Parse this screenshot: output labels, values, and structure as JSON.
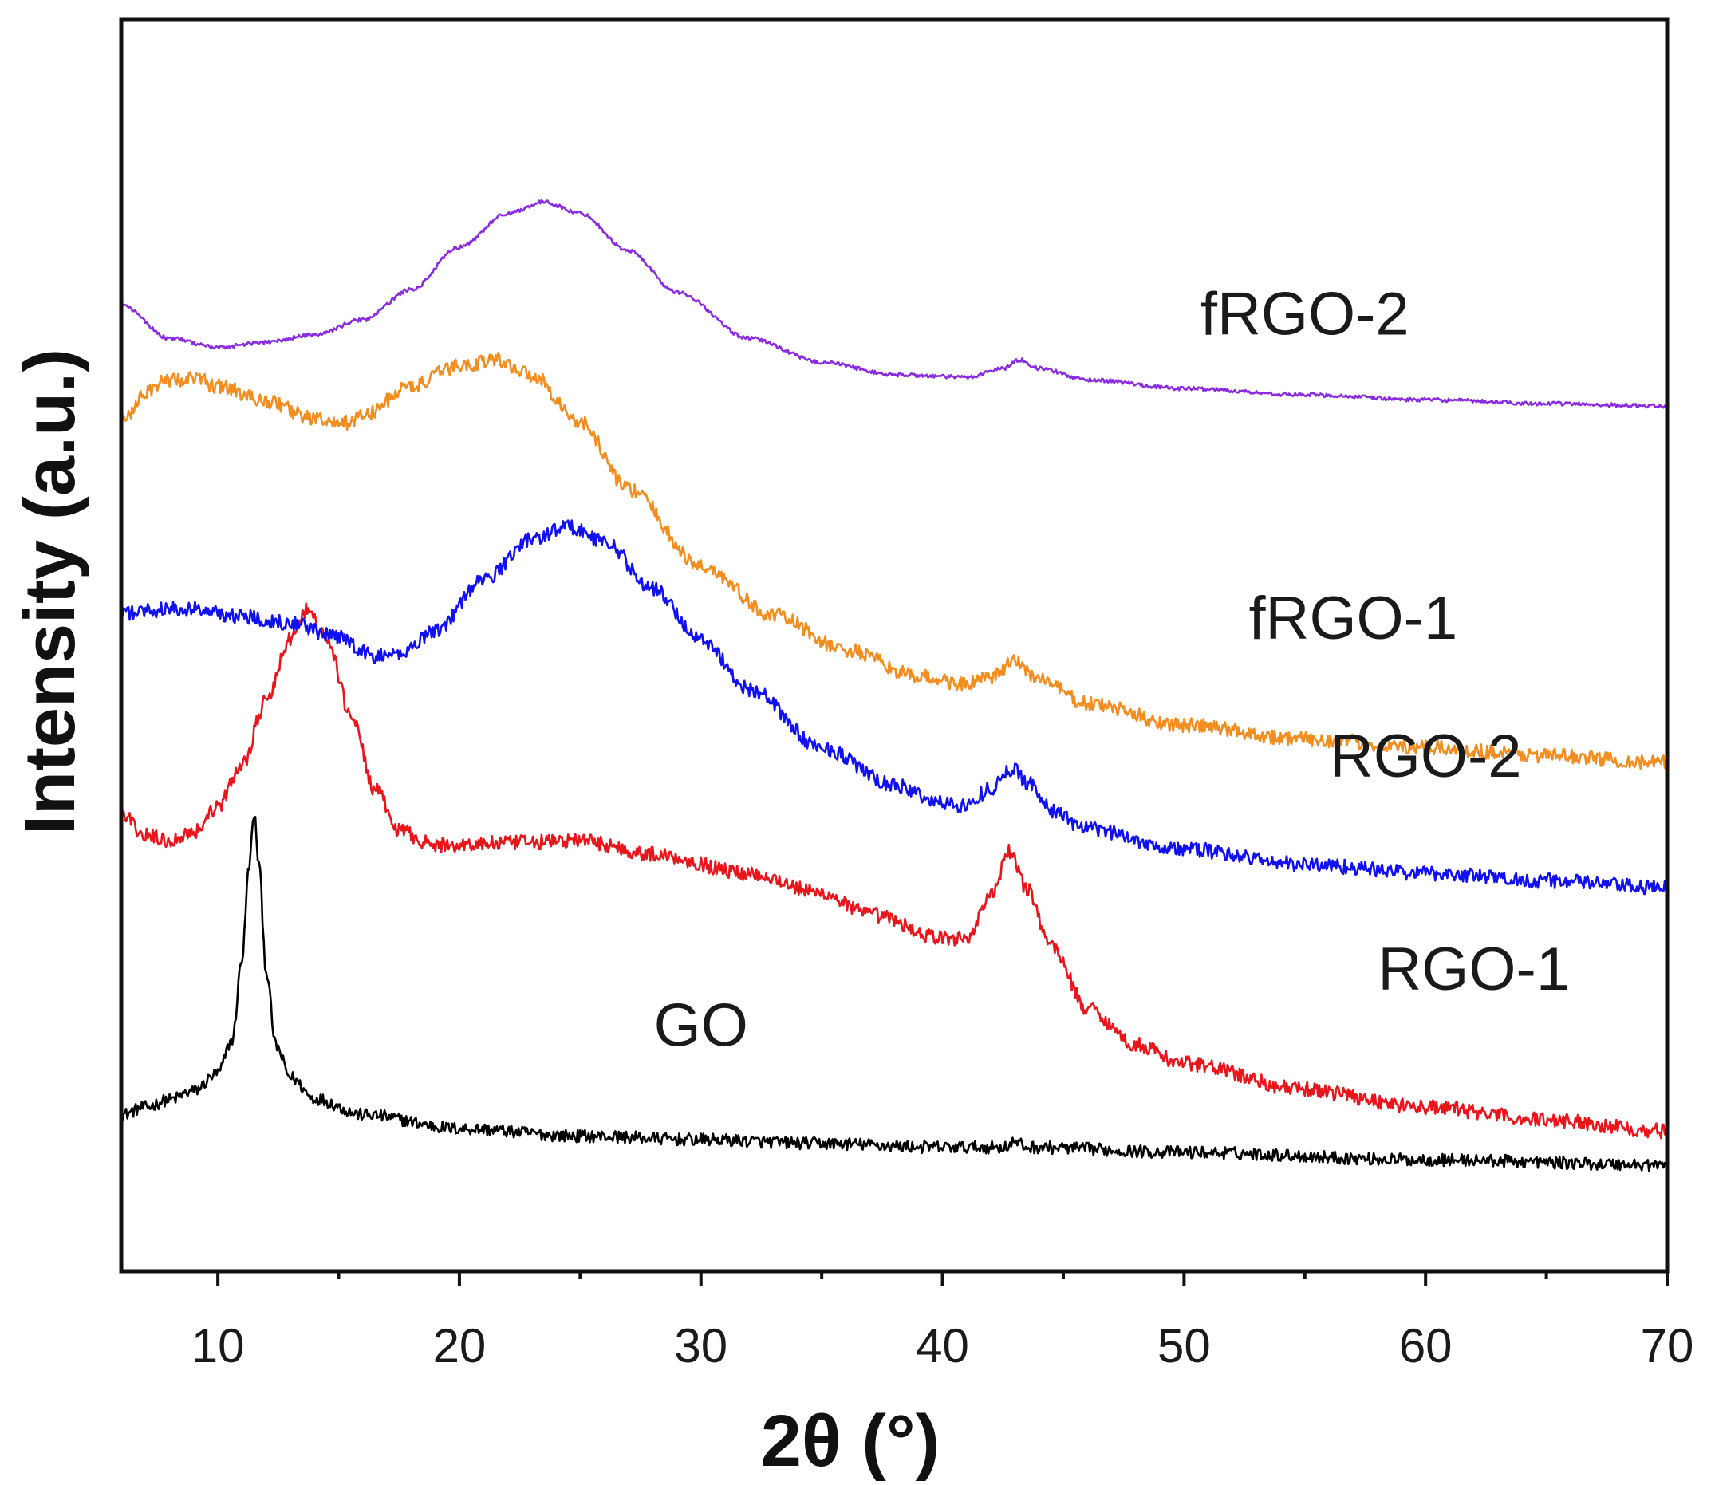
{
  "chart_data": {
    "type": "line",
    "title": "",
    "xlabel": "2θ (°)",
    "ylabel": "Intensity (a.u.)",
    "xlim": [
      6,
      70
    ],
    "ylim": [
      0,
      100
    ],
    "xticks": [
      10,
      20,
      30,
      40,
      50,
      60,
      70
    ],
    "xtick_labels": [
      "10",
      "20",
      "30",
      "40",
      "50",
      "60",
      "70"
    ],
    "yticks": [],
    "grid": false,
    "series": [
      {
        "name": "GO",
        "label": "GO",
        "color": "#000000",
        "noise": 0.5,
        "points": [
          [
            6,
            12.5
          ],
          [
            7,
            13.1
          ],
          [
            8,
            13.7
          ],
          [
            9,
            14.4
          ],
          [
            10,
            15.8
          ],
          [
            10.6,
            18.5
          ],
          [
            11,
            25
          ],
          [
            11.3,
            32.5
          ],
          [
            11.5,
            36.5
          ],
          [
            11.7,
            32.5
          ],
          [
            12,
            24
          ],
          [
            12.4,
            18
          ],
          [
            13,
            15.5
          ],
          [
            14,
            13.8
          ],
          [
            16,
            12.5
          ],
          [
            20,
            11.4
          ],
          [
            25,
            10.8
          ],
          [
            30,
            10.5
          ],
          [
            35,
            10.2
          ],
          [
            40,
            9.9
          ],
          [
            42.5,
            9.9
          ],
          [
            43,
            10.3
          ],
          [
            43.5,
            9.9
          ],
          [
            50,
            9.5
          ],
          [
            60,
            8.9
          ],
          [
            70,
            8.5
          ]
        ]
      },
      {
        "name": "RGO-1",
        "label": "RGO-1",
        "color": "#e8151b",
        "noise": 0.6,
        "points": [
          [
            6,
            36.5
          ],
          [
            7,
            34.8
          ],
          [
            8,
            34.4
          ],
          [
            9,
            35.1
          ],
          [
            10,
            37.1
          ],
          [
            11,
            40.5
          ],
          [
            12,
            45.5
          ],
          [
            13,
            50.5
          ],
          [
            13.7,
            52.8
          ],
          [
            14.5,
            50.5
          ],
          [
            15.5,
            44.5
          ],
          [
            16.5,
            38.5
          ],
          [
            17.5,
            35.2
          ],
          [
            19,
            34
          ],
          [
            22,
            34.2
          ],
          [
            25,
            34.4
          ],
          [
            28,
            33.3
          ],
          [
            32,
            31.8
          ],
          [
            35,
            30.2
          ],
          [
            37,
            28.5
          ],
          [
            40,
            26.6
          ],
          [
            41,
            26.6
          ],
          [
            42,
            30
          ],
          [
            42.8,
            33.5
          ],
          [
            43.5,
            30.5
          ],
          [
            44.5,
            26
          ],
          [
            46,
            21
          ],
          [
            48,
            18.1
          ],
          [
            50,
            16.6
          ],
          [
            55,
            14.5
          ],
          [
            60,
            13.1
          ],
          [
            65,
            12.1
          ],
          [
            70,
            11.2
          ]
        ]
      },
      {
        "name": "RGO-2",
        "label": "RGO-2",
        "color": "#1010f0",
        "noise": 0.6,
        "points": [
          [
            6,
            52.5
          ],
          [
            7,
            52.8
          ],
          [
            9,
            52.9
          ],
          [
            11,
            52.3
          ],
          [
            13,
            51.8
          ],
          [
            15,
            50.6
          ],
          [
            16.5,
            49.1
          ],
          [
            17.5,
            49.3
          ],
          [
            19,
            51.2
          ],
          [
            21,
            55.2
          ],
          [
            23,
            58.5
          ],
          [
            24.5,
            59.5
          ],
          [
            26,
            58.3
          ],
          [
            28,
            54.5
          ],
          [
            30,
            50.5
          ],
          [
            32,
            46.5
          ],
          [
            35,
            41.8
          ],
          [
            38,
            38.8
          ],
          [
            40,
            37.4
          ],
          [
            41,
            37.2
          ],
          [
            42,
            38.6
          ],
          [
            42.9,
            40.1
          ],
          [
            43.6,
            39
          ],
          [
            44.5,
            36.8
          ],
          [
            46,
            35.3
          ],
          [
            50,
            33.7
          ],
          [
            55,
            32.5
          ],
          [
            60,
            31.8
          ],
          [
            65,
            31.2
          ],
          [
            70,
            30.6
          ]
        ]
      },
      {
        "name": "fRGO-1",
        "label": "fRGO-1",
        "color": "#f28d1f",
        "noise": 0.6,
        "points": [
          [
            6,
            67.8
          ],
          [
            7,
            70.3
          ],
          [
            8,
            71.2
          ],
          [
            9,
            71.3
          ],
          [
            10,
            70.7
          ],
          [
            12,
            69.5
          ],
          [
            14,
            68.1
          ],
          [
            15,
            67.6
          ],
          [
            16,
            68.3
          ],
          [
            18,
            70.7
          ],
          [
            20,
            72.3
          ],
          [
            21.5,
            72.8
          ],
          [
            23,
            71.6
          ],
          [
            25,
            67.8
          ],
          [
            27,
            62.5
          ],
          [
            30,
            56.3
          ],
          [
            33,
            52.4
          ],
          [
            36,
            49.6
          ],
          [
            39,
            47.5
          ],
          [
            41,
            46.9
          ],
          [
            42,
            47.4
          ],
          [
            43,
            48.7
          ],
          [
            44,
            47.3
          ],
          [
            46,
            45.3
          ],
          [
            50,
            43.6
          ],
          [
            55,
            42.5
          ],
          [
            60,
            41.8
          ],
          [
            65,
            41.2
          ],
          [
            70,
            40.6
          ]
        ]
      },
      {
        "name": "fRGO-2",
        "label": "fRGO-2",
        "color": "#8a2be2",
        "noise": 0.15,
        "points": [
          [
            6,
            77.2
          ],
          [
            8,
            74.5
          ],
          [
            10,
            73.8
          ],
          [
            12,
            74.2
          ],
          [
            14,
            74.8
          ],
          [
            16,
            76
          ],
          [
            18,
            78.4
          ],
          [
            20,
            81.8
          ],
          [
            22,
            84.5
          ],
          [
            23.5,
            85.4
          ],
          [
            25,
            84.5
          ],
          [
            27,
            81.5
          ],
          [
            29,
            78.2
          ],
          [
            32,
            74.5
          ],
          [
            35,
            72.6
          ],
          [
            38,
            71.6
          ],
          [
            41,
            71.4
          ],
          [
            42.5,
            72.1
          ],
          [
            43.2,
            72.8
          ],
          [
            44,
            72.1
          ],
          [
            46,
            71.2
          ],
          [
            50,
            70.5
          ],
          [
            55,
            70
          ],
          [
            60,
            69.6
          ],
          [
            65,
            69.3
          ],
          [
            70,
            69.1
          ]
        ]
      }
    ]
  }
}
